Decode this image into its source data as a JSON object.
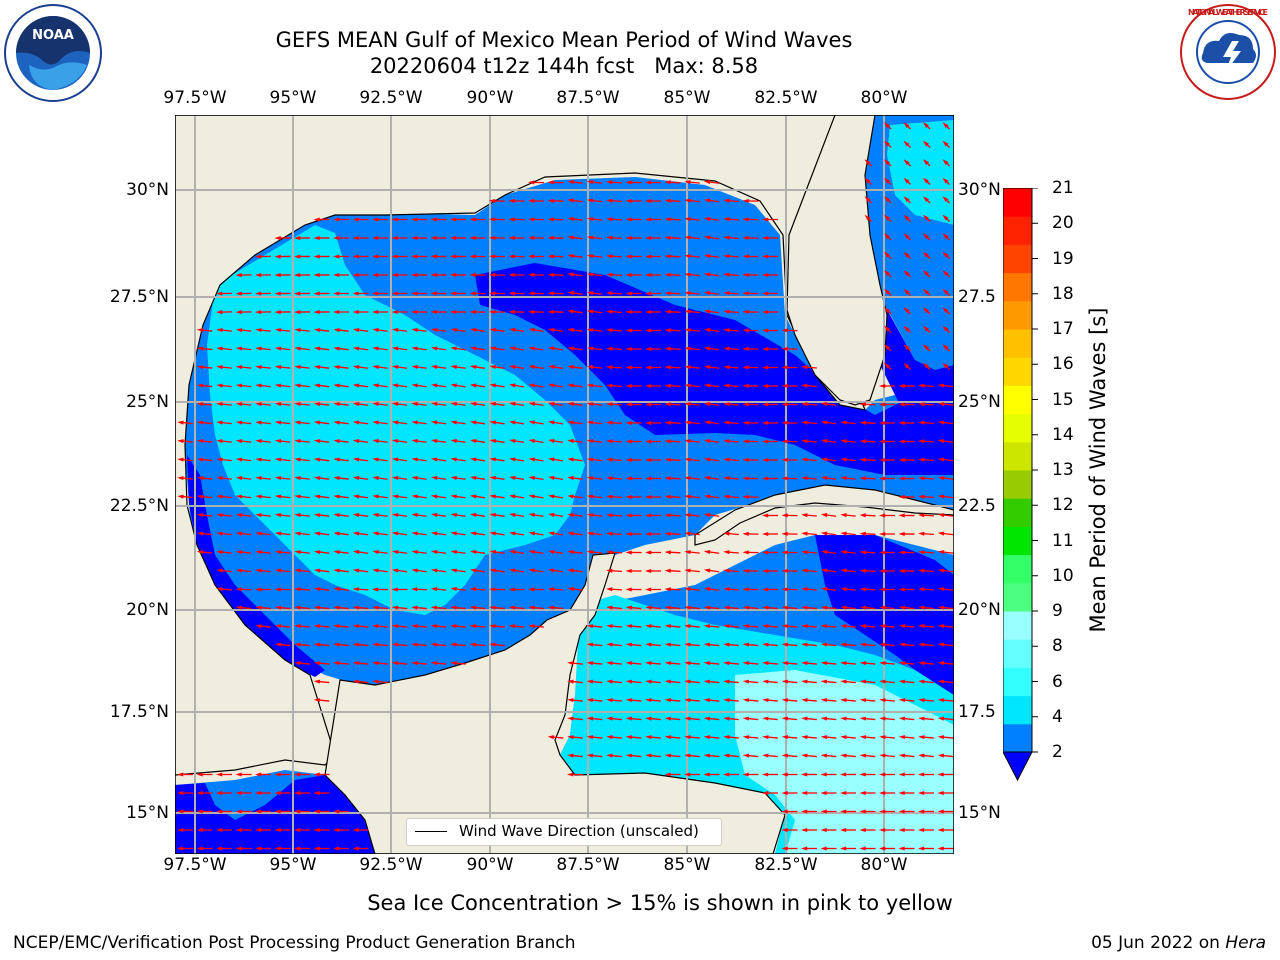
{
  "header": {
    "title_line1": "GEFS MEAN Gulf of Mexico Mean Period of Wind Waves",
    "title_line2": "20220604 t12z 144h fcst   Max: 8.58"
  },
  "logos": {
    "left": "NOAA",
    "right": "NATIONAL WEATHER SERVICE"
  },
  "map": {
    "lon_ticks": [
      "97.5°W",
      "95°W",
      "92.5°W",
      "90°W",
      "87.5°W",
      "85°W",
      "82.5°W",
      "80°W"
    ],
    "lat_ticks_left": [
      "30°N",
      "27.5°N",
      "25°N",
      "22.5°N",
      "20°N",
      "17.5°N",
      "15°N"
    ],
    "lat_ticks_right": [
      "30°N",
      "27.5",
      "25°N",
      "22.5",
      "20°N",
      "17.5",
      "15°N"
    ],
    "legend_label": "Wind Wave Direction (unscaled)",
    "colors": {
      "land": "#efedde",
      "arrows": "#ff0000",
      "grid": "#b0b0b0"
    }
  },
  "colorbar": {
    "label": "Mean Period of Wind Waves [s]",
    "ticks": [
      "21",
      "20",
      "19",
      "18",
      "17",
      "16",
      "15",
      "14",
      "13",
      "12",
      "11",
      "10",
      "9",
      "8",
      "6",
      "4",
      "2"
    ],
    "colors_bottom_to_top": [
      "#0080ff",
      "#00e6ff",
      "#33ffff",
      "#66ffff",
      "#99ffff",
      "#4dff80",
      "#33ff66",
      "#00e600",
      "#33cc00",
      "#99cc00",
      "#cce600",
      "#e6ff00",
      "#ffff00",
      "#ffd700",
      "#ffc000",
      "#ff9900",
      "#ff7700",
      "#ff4400",
      "#ff2200",
      "#ff0000"
    ],
    "extend_color": "#0000ff"
  },
  "subtitle": "Sea Ice Concentration > 15% is shown in pink to yellow",
  "footer": {
    "left": "NCEP/EMC/Verification Post Processing Product Generation Branch",
    "date": "05 Jun 2022 on",
    "machine": "Hera"
  }
}
